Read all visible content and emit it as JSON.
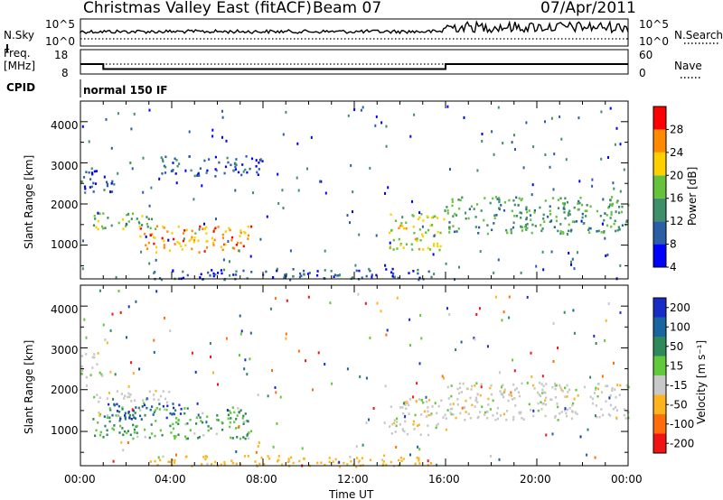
{
  "header": {
    "title": "Christmas Valley East (fitACF)",
    "beam": "Beam 07",
    "date": "07/Apr/2011"
  },
  "noise_panel": {
    "left_label": "N.Sky",
    "right_label": "N.Search",
    "left_ticks": [
      "10^5",
      "10^0"
    ],
    "right_ticks": [
      "10^5",
      "10^0"
    ]
  },
  "freq_panel": {
    "left_label_line1": "Freq.",
    "left_label_line2": "[MHz]",
    "left_ticks": [
      "18",
      "8"
    ],
    "right_label": "Nave",
    "right_ticks": [
      "60",
      "0"
    ]
  },
  "cpid": {
    "label": "CPID",
    "value": "normal 150 IF"
  },
  "power_panel": {
    "ylabel": "Slant Range [km]",
    "yticks": [
      "1000",
      "2000",
      "3000",
      "4000"
    ],
    "colorbar_label": "Power [dB]",
    "colorbar_ticks": [
      "28",
      "24",
      "20",
      "16",
      "12",
      "8",
      "4"
    ],
    "colors": [
      "#0000ff",
      "#2a5fa8",
      "#3f8f6a",
      "#66c23a",
      "#ffd000",
      "#ff8a00",
      "#ff0000"
    ]
  },
  "velocity_panel": {
    "ylabel": "Slant Range [km]",
    "yticks": [
      "1000",
      "2000",
      "3000",
      "4000"
    ],
    "colorbar_label": "Velocity [m s⁻¹]",
    "colorbar_ticks": [
      "200",
      "100",
      "50",
      "15",
      "-15",
      "-50",
      "-100",
      "-200"
    ],
    "colors": [
      "#1a2cc8",
      "#1a64a0",
      "#2e8a5a",
      "#62c83c",
      "#c8c8c8",
      "#ffb41e",
      "#ff6e0a",
      "#f01414"
    ]
  },
  "xaxis": {
    "label": "Time UT",
    "ticks": [
      "00:00",
      "04:00",
      "08:00",
      "12:00",
      "16:00",
      "20:00",
      "00:00"
    ]
  },
  "chart_data": {
    "type": "heatmap",
    "title": "Christmas Valley East (fitACF)",
    "subtitle": "Beam 07 07/Apr/2011",
    "xlabel": "Time UT",
    "ylabel": "Slant Range [km]",
    "xlim_hours": [
      0,
      24
    ],
    "ylim_km": [
      180,
      4500
    ],
    "freq_mhz_segments": [
      {
        "start_h": 0,
        "end_h": 1,
        "value": 13
      },
      {
        "start_h": 1,
        "end_h": 16,
        "value": 10.5
      },
      {
        "start_h": 16,
        "end_h": 24,
        "value": 13
      }
    ],
    "nave_approx": 30,
    "power_echo_regions_db": [
      {
        "t_start": 0.5,
        "t_end": 3.5,
        "r_low": 1400,
        "r_high": 1800,
        "power": 14
      },
      {
        "t_start": 2.5,
        "t_end": 7.5,
        "r_low": 850,
        "r_high": 1500,
        "power": 22
      },
      {
        "t_start": 13.5,
        "t_end": 16,
        "r_low": 900,
        "r_high": 1800,
        "power": 18
      },
      {
        "t_start": 16,
        "t_end": 24,
        "r_low": 1300,
        "r_high": 2200,
        "power": 12
      },
      {
        "t_start": 0,
        "t_end": 1.5,
        "r_low": 2300,
        "r_high": 2900,
        "power": 6
      },
      {
        "t_start": 3.5,
        "t_end": 8,
        "r_low": 2700,
        "r_high": 3200,
        "power": 6
      },
      {
        "t_start": 3,
        "t_end": 15.5,
        "r_low": 180,
        "r_high": 450,
        "power": 6
      }
    ],
    "velocity_echo_regions_ms": [
      {
        "t_start": 0.5,
        "t_end": 4,
        "r_low": 1700,
        "r_high": 2000,
        "velocity": 0
      },
      {
        "t_start": 0.5,
        "t_end": 7.5,
        "r_low": 850,
        "r_high": 1600,
        "velocity": 30
      },
      {
        "t_start": 1,
        "t_end": 4.5,
        "r_low": 1300,
        "r_high": 1700,
        "velocity": 150
      },
      {
        "t_start": 13.5,
        "t_end": 16,
        "r_low": 900,
        "r_high": 1800,
        "velocity": 0
      },
      {
        "t_start": 16,
        "t_end": 24,
        "r_low": 1300,
        "r_high": 2200,
        "velocity": 0
      },
      {
        "t_start": 0,
        "t_end": 1,
        "r_low": 2300,
        "r_high": 2900,
        "velocity": 0
      },
      {
        "t_start": 3,
        "t_end": 15.5,
        "r_low": 180,
        "r_high": 450,
        "velocity": -30
      }
    ]
  }
}
